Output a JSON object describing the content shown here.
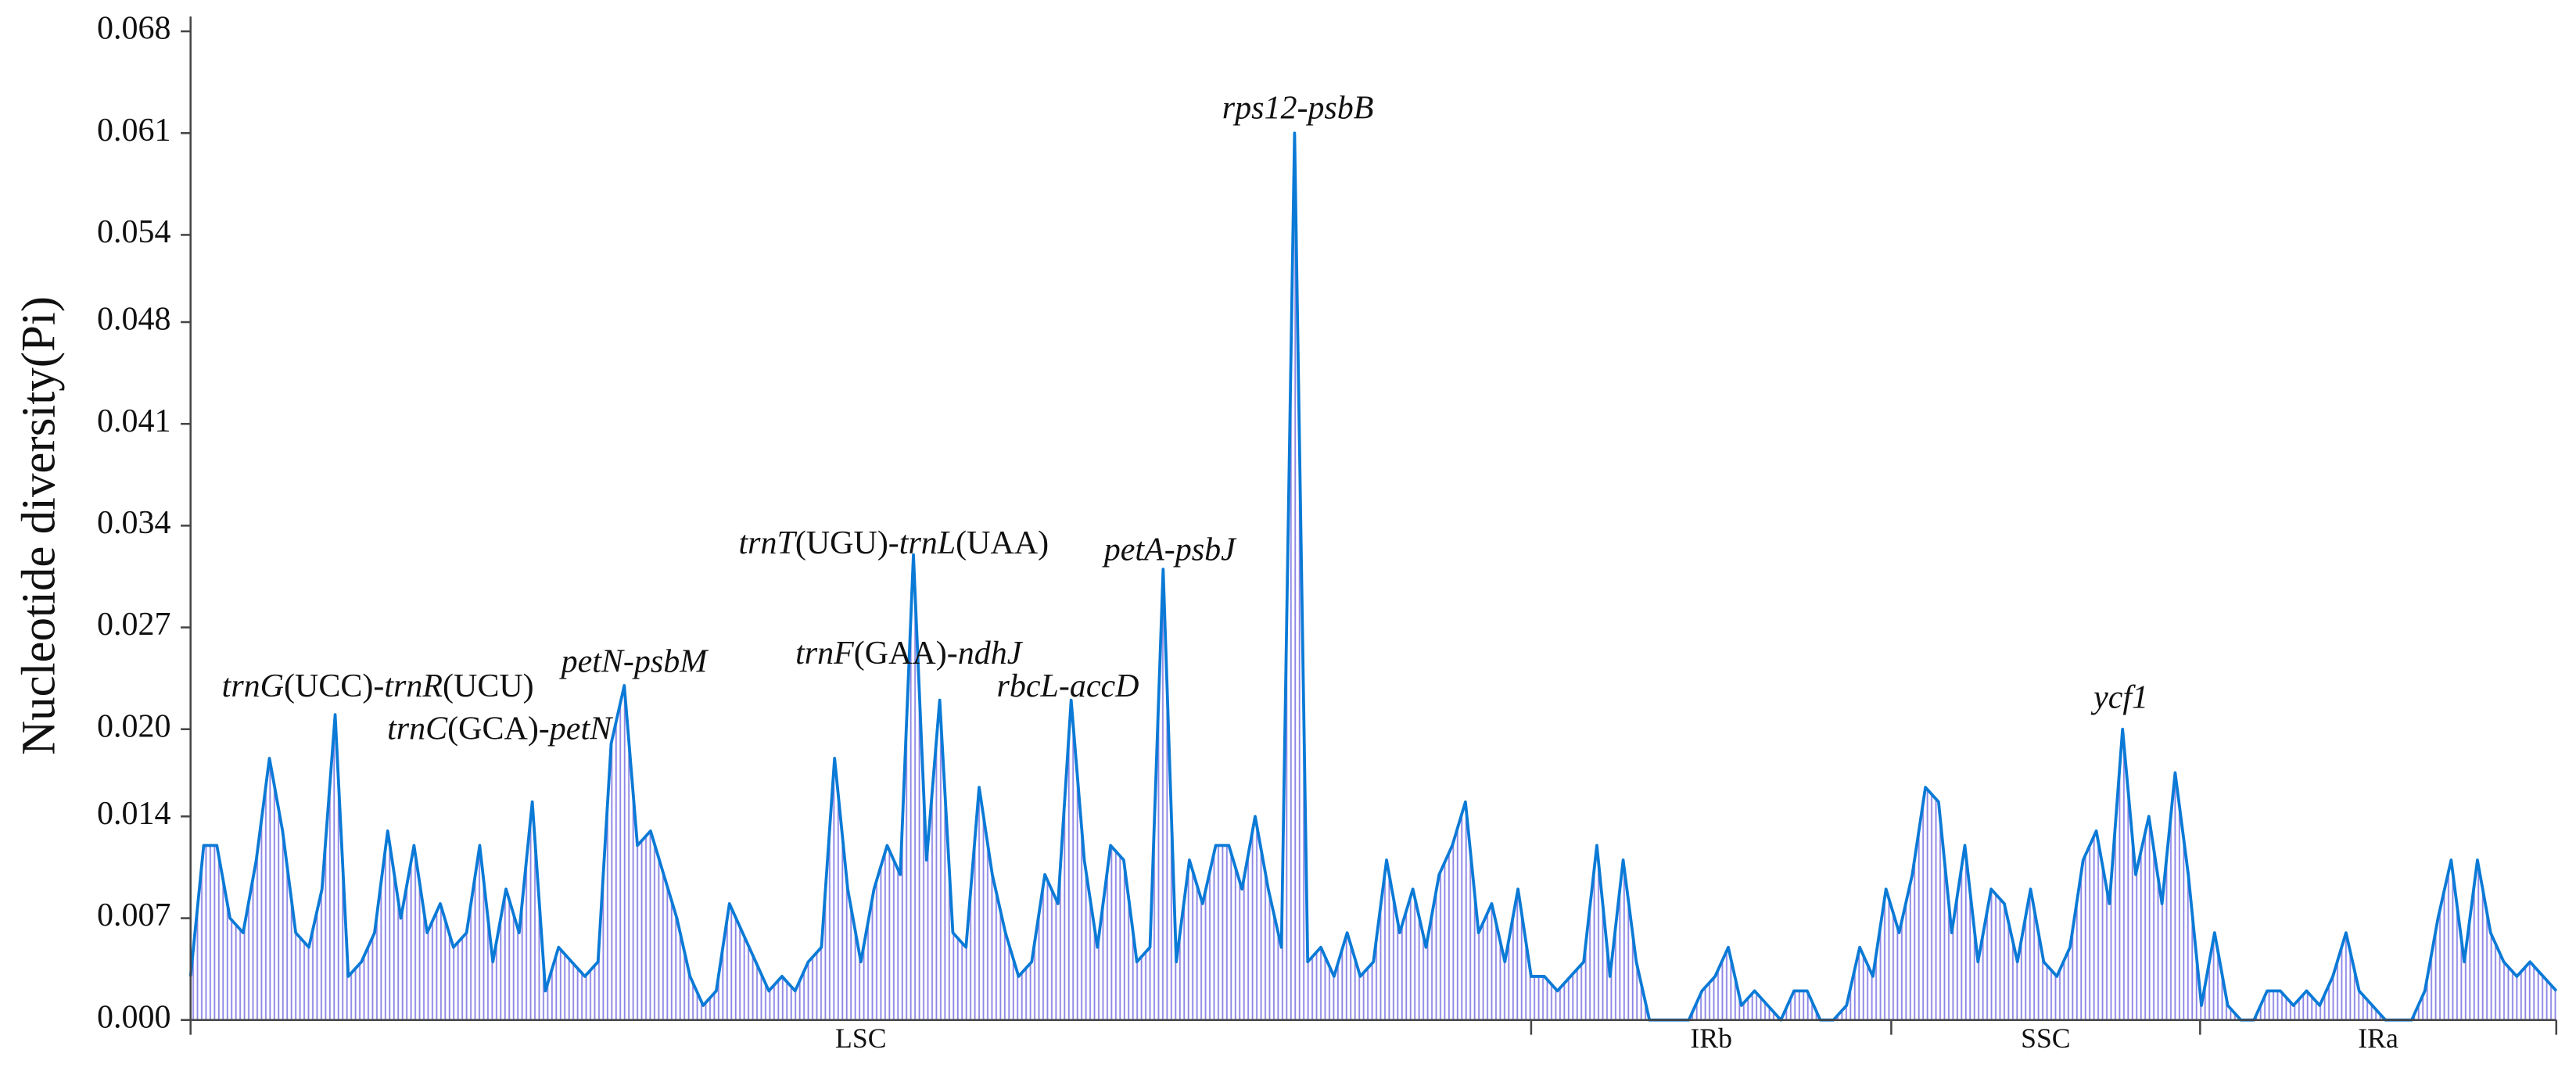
{
  "chart_data": {
    "type": "area",
    "y_label": "Nucleotide diversity(Pi)",
    "color": "#0a7ad6",
    "fill_color": "#8d86e6",
    "xlim": [
      0,
      180
    ],
    "ylim": [
      0,
      0.068
    ],
    "yticks": [
      {
        "value": 0,
        "label": "0.000"
      },
      {
        "value": 0.007,
        "label": "0.007"
      },
      {
        "value": 0.014,
        "label": "0.014"
      },
      {
        "value": 0.02,
        "label": "0.020"
      },
      {
        "value": 0.027,
        "label": "0.027"
      },
      {
        "value": 0.034,
        "label": "0.034"
      },
      {
        "value": 0.041,
        "label": "0.041"
      },
      {
        "value": 0.048,
        "label": "0.048"
      },
      {
        "value": 0.054,
        "label": "0.054"
      },
      {
        "value": 0.061,
        "label": "0.061"
      },
      {
        "value": 0.068,
        "label": "0.068"
      }
    ],
    "regions": [
      {
        "label": "LSC",
        "start": 0,
        "end": 102
      },
      {
        "label": "IRb",
        "start": 102,
        "end": 129.4
      },
      {
        "label": "SSC",
        "start": 129.4,
        "end": 152.9
      },
      {
        "label": "IRa",
        "start": 152.9,
        "end": 180
      }
    ],
    "values": [
      0.003,
      0.012,
      0.012,
      0.007,
      0.006,
      0.011,
      0.018,
      0.013,
      0.006,
      0.005,
      0.009,
      0.021,
      0.003,
      0.004,
      0.006,
      0.013,
      0.007,
      0.012,
      0.006,
      0.008,
      0.005,
      0.006,
      0.012,
      0.004,
      0.009,
      0.006,
      0.015,
      0.002,
      0.005,
      0.004,
      0.003,
      0.004,
      0.019,
      0.023,
      0.012,
      0.013,
      0.01,
      0.007,
      0.003,
      0.001,
      0.002,
      0.008,
      0.006,
      0.004,
      0.002,
      0.003,
      0.002,
      0.004,
      0.005,
      0.018,
      0.009,
      0.004,
      0.009,
      0.012,
      0.01,
      0.032,
      0.011,
      0.022,
      0.006,
      0.005,
      0.016,
      0.01,
      0.006,
      0.003,
      0.004,
      0.01,
      0.008,
      0.022,
      0.011,
      0.005,
      0.012,
      0.011,
      0.004,
      0.005,
      0.031,
      0.004,
      0.011,
      0.008,
      0.012,
      0.012,
      0.009,
      0.014,
      0.009,
      0.005,
      0.061,
      0.004,
      0.005,
      0.003,
      0.006,
      0.003,
      0.004,
      0.011,
      0.006,
      0.009,
      0.005,
      0.01,
      0.012,
      0.015,
      0.006,
      0.008,
      0.004,
      0.009,
      0.003,
      0.003,
      0.002,
      0.003,
      0.004,
      0.012,
      0.003,
      0.011,
      0.004,
      0,
      0,
      0,
      0,
      0.002,
      0.003,
      0.005,
      0.001,
      0.002,
      0.001,
      0,
      0.002,
      0.002,
      0,
      0,
      0.001,
      0.005,
      0.003,
      0.009,
      0.006,
      0.01,
      0.016,
      0.015,
      0.006,
      0.012,
      0.004,
      0.009,
      0.008,
      0.004,
      0.009,
      0.004,
      0.003,
      0.005,
      0.011,
      0.013,
      0.008,
      0.02,
      0.01,
      0.014,
      0.008,
      0.017,
      0.01,
      0.001,
      0.006,
      0.001,
      0,
      0,
      0.002,
      0.002,
      0.001,
      0.002,
      0.001,
      0.003,
      0.006,
      0.002,
      0.001,
      0,
      0,
      0,
      0.002,
      0.007,
      0.011,
      0.004,
      0.011,
      0.006,
      0.004,
      0.003,
      0.004,
      0.003,
      0.002
    ],
    "annotations": [
      {
        "parts": [
          {
            "text": "trnG",
            "italic": true
          },
          {
            "text": "(UCC)-"
          },
          {
            "text": "trnR",
            "italic": true
          },
          {
            "text": "(UCU)"
          }
        ]
      },
      {
        "parts": [
          {
            "text": "petN-psbM",
            "italic": true
          }
        ]
      },
      {
        "parts": [
          {
            "text": "trnC",
            "italic": true
          },
          {
            "text": "(GCA)-"
          },
          {
            "text": "petN",
            "italic": true
          }
        ]
      },
      {
        "parts": [
          {
            "text": "trnT",
            "italic": true
          },
          {
            "text": "(UGU)-"
          },
          {
            "text": "trnL",
            "italic": true
          },
          {
            "text": "(UAA)"
          }
        ]
      },
      {
        "parts": [
          {
            "text": "trnF",
            "italic": true
          },
          {
            "text": "(GAA)-"
          },
          {
            "text": "ndhJ",
            "italic": true
          }
        ]
      },
      {
        "parts": [
          {
            "text": "rbcL-accD",
            "italic": true
          }
        ]
      },
      {
        "parts": [
          {
            "text": "petA-psbJ",
            "italic": true
          }
        ]
      },
      {
        "parts": [
          {
            "text": "rps12-psbB",
            "italic": true
          }
        ]
      },
      {
        "parts": [
          {
            "text": "ycf1",
            "italic": true
          }
        ]
      }
    ]
  }
}
